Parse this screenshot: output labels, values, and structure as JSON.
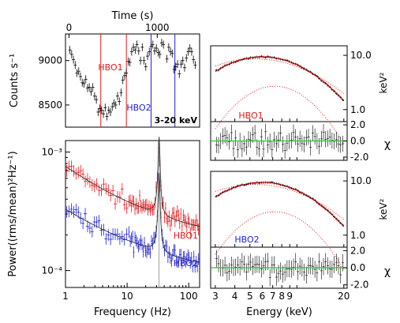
{
  "chart_data": [
    {
      "id": "lightcurve",
      "type": "scatter",
      "xlabel": "Time (s)",
      "ylabel": "Counts s⁻¹",
      "xlim": [
        -40,
        1480
      ],
      "ylim": [
        8250,
        9300
      ],
      "xticks": [
        0,
        1000
      ],
      "yticks": [
        8500,
        9000
      ],
      "band_label": "3-20 keV",
      "intervals": [
        {
          "name": "HBO1",
          "start": 360,
          "end": 650,
          "color": "#e41a1c"
        },
        {
          "name": "HBO2",
          "start": 930,
          "end": 1200,
          "color": "#1f1fd6"
        }
      ],
      "x": [
        10,
        30,
        50,
        70,
        90,
        110,
        130,
        150,
        170,
        190,
        210,
        230,
        250,
        270,
        290,
        310,
        330,
        350,
        370,
        390,
        410,
        430,
        450,
        470,
        490,
        510,
        530,
        550,
        570,
        590,
        610,
        630,
        650,
        670,
        690,
        710,
        730,
        750,
        770,
        790,
        810,
        830,
        850,
        870,
        890,
        910,
        930,
        950,
        970,
        990,
        1010,
        1030,
        1050,
        1070,
        1110,
        1130,
        1150,
        1170,
        1190,
        1210,
        1230,
        1250,
        1270,
        1290,
        1310,
        1330,
        1350,
        1370,
        1390,
        1410,
        1430
      ],
      "y": [
        9120,
        9070,
        9010,
        8950,
        8860,
        8880,
        8820,
        8750,
        8740,
        8790,
        8690,
        8700,
        8650,
        8700,
        8600,
        8560,
        8420,
        8460,
        8440,
        8400,
        8470,
        8370,
        8440,
        8420,
        8480,
        8520,
        8500,
        8600,
        8540,
        8640,
        8780,
        8830,
        8860,
        8990,
        8980,
        9100,
        9150,
        9120,
        9180,
        9110,
        9000,
        9150,
        9000,
        8930,
        9050,
        9100,
        9160,
        9180,
        9110,
        9140,
        9090,
        9070,
        9200,
        9180,
        9020,
        9150,
        9100,
        9080,
        8900,
        8930,
        8960,
        8850,
        8960,
        9000,
        8920,
        9030,
        9100,
        9140,
        9100,
        9010,
        8950
      ],
      "err": 45
    },
    {
      "id": "pds",
      "type": "scatter",
      "xlabel": "Frequency (Hz)",
      "ylabel": "Power((rms/mean)²Hz⁻¹)",
      "xscale": "log",
      "yscale": "log",
      "xlim": [
        1,
        150
      ],
      "ylim": [
        7.2e-05,
        0.00125
      ],
      "xtick_labels": [
        "1",
        "10",
        "100"
      ],
      "ytick_labels": [
        "10⁻³",
        "10⁻⁴"
      ],
      "qpo_line_hz": 33,
      "series": [
        {
          "name": "HBO1",
          "color": "#e41a1c",
          "lorentz": {
            "A": 0.00058,
            "alpha": 0.45,
            "B": 0.000175,
            "nu0": 33,
            "w": 2.5
          }
        },
        {
          "name": "HBO2",
          "color": "#1f1fd6",
          "lorentz": {
            "A": 0.00024,
            "alpha": 0.42,
            "B": 8.8e-05,
            "nu0": 33,
            "w": 2.5
          }
        }
      ]
    },
    {
      "id": "spec1",
      "type": "line",
      "label": "HBO1",
      "label_color": "#e41a1c",
      "xscale": "log",
      "yscale": "log",
      "xlim": [
        2.8,
        21
      ],
      "ylim": [
        0.6,
        15
      ],
      "ylabel": "keV²",
      "ytick_labels": [
        "10.0",
        "1.0"
      ],
      "res_ylim": [
        -2.4,
        2.4
      ],
      "res_ylabel": "χ",
      "res_ytick_labels": [
        "2.0",
        "0.0",
        "-2.0"
      ]
    },
    {
      "id": "spec2",
      "type": "line",
      "label": "HBO2",
      "label_color": "#1f1fd6",
      "xscale": "log",
      "yscale": "log",
      "xlim": [
        2.8,
        21
      ],
      "ylim": [
        0.6,
        15
      ],
      "ylabel": "keV²",
      "ytick_labels": [
        "10.0",
        "1.0"
      ],
      "res_ylim": [
        -2.4,
        2.4
      ],
      "res_ylabel": "χ",
      "res_ytick_labels": [
        "2.0",
        "0.0",
        "-2.0"
      ],
      "xlabel": "Energy (keV)",
      "xtick_labels": [
        "3",
        "4",
        "5",
        "6",
        "7",
        "8",
        "9",
        "20"
      ],
      "xtick_values": [
        3,
        4,
        5,
        6,
        7,
        8,
        9,
        20
      ]
    }
  ]
}
